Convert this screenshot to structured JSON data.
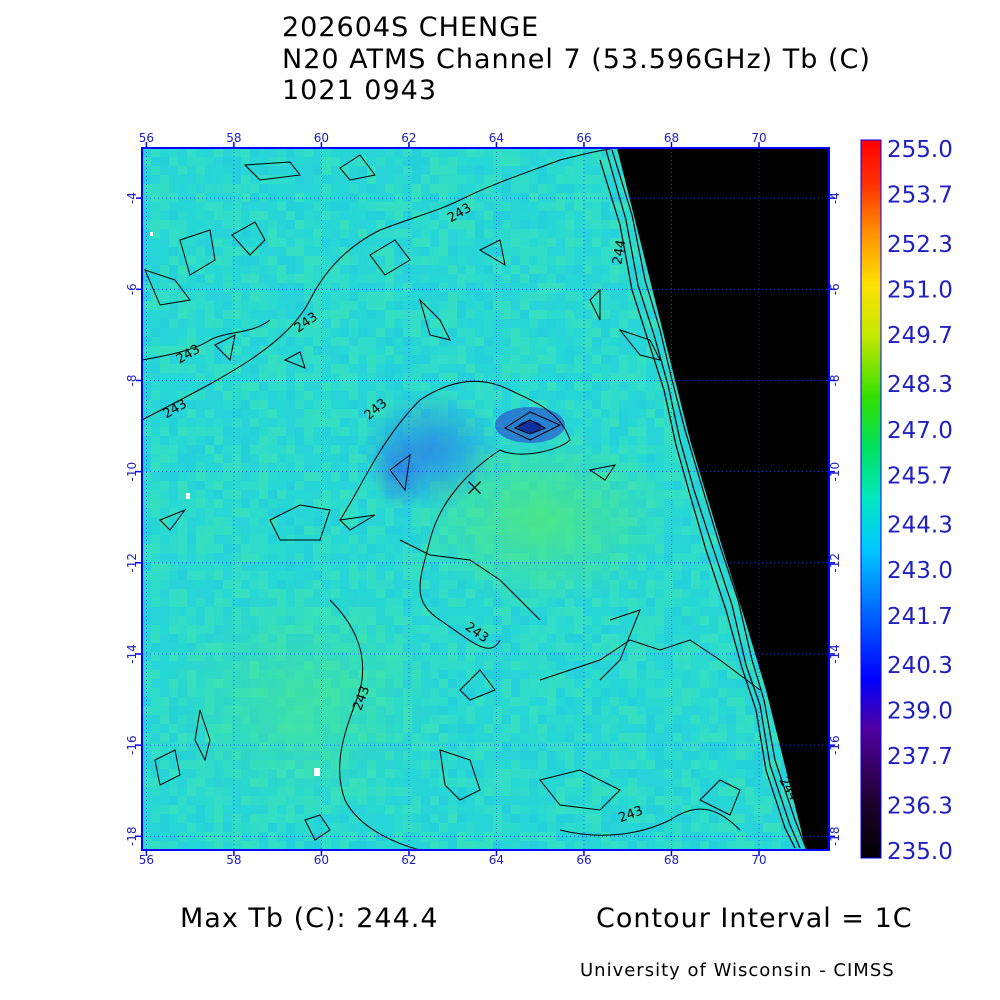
{
  "header": {
    "storm": "202604S CHENGE",
    "product": "N20 ATMS Channel 7 (53.596GHz) Tb (C)",
    "datetime": "1021 0943"
  },
  "map": {
    "lon_ticks": [
      "56",
      "58",
      "60",
      "62",
      "64",
      "66",
      "68",
      "70"
    ],
    "lat_ticks": [
      "-4",
      "-6",
      "-8",
      "-10",
      "-12",
      "-14",
      "-16",
      "-18"
    ],
    "lon_range": [
      55.9,
      71.6
    ],
    "lat_range": [
      -2.9,
      -18.3
    ],
    "contour_labels": [
      {
        "text": "243",
        "lon": 63.2,
        "lat": -4.4,
        "rot": -30
      },
      {
        "text": "243",
        "lon": 59.7,
        "lat": -6.8,
        "rot": -35
      },
      {
        "text": "243",
        "lon": 57.0,
        "lat": -7.5,
        "rot": -30
      },
      {
        "text": "243",
        "lon": 56.7,
        "lat": -8.7,
        "rot": -30
      },
      {
        "text": "243",
        "lon": 61.3,
        "lat": -8.7,
        "rot": -40
      },
      {
        "text": "243",
        "lon": 63.5,
        "lat": -13.6,
        "rot": 35
      },
      {
        "text": "243",
        "lon": 61.0,
        "lat": -15.0,
        "rot": -70
      },
      {
        "text": "243",
        "lon": 67.1,
        "lat": -17.6,
        "rot": -20
      },
      {
        "text": "244",
        "lon": 66.9,
        "lat": -5.2,
        "rot": -80
      },
      {
        "text": "244",
        "lon": 70.6,
        "lat": -17.0,
        "rot": 60
      }
    ],
    "storm_center_marker": {
      "lon": 63.5,
      "lat": -10.35
    },
    "no_data_color": "#000000",
    "grid_color": "#3030ff",
    "frame_color": "#0000ff"
  },
  "colorbar": {
    "labels": [
      "255.0",
      "253.7",
      "252.3",
      "251.0",
      "249.7",
      "248.3",
      "247.0",
      "245.7",
      "244.3",
      "243.0",
      "241.7",
      "240.3",
      "239.0",
      "237.7",
      "236.3",
      "235.0"
    ],
    "min": 235.0,
    "max": 255.0,
    "label_color": "#2020c0"
  },
  "footer": {
    "max_tb": "Max Tb (C): 244.4",
    "contour_interval": "Contour Interval = 1C",
    "credit": "University of Wisconsin - CIMSS"
  }
}
